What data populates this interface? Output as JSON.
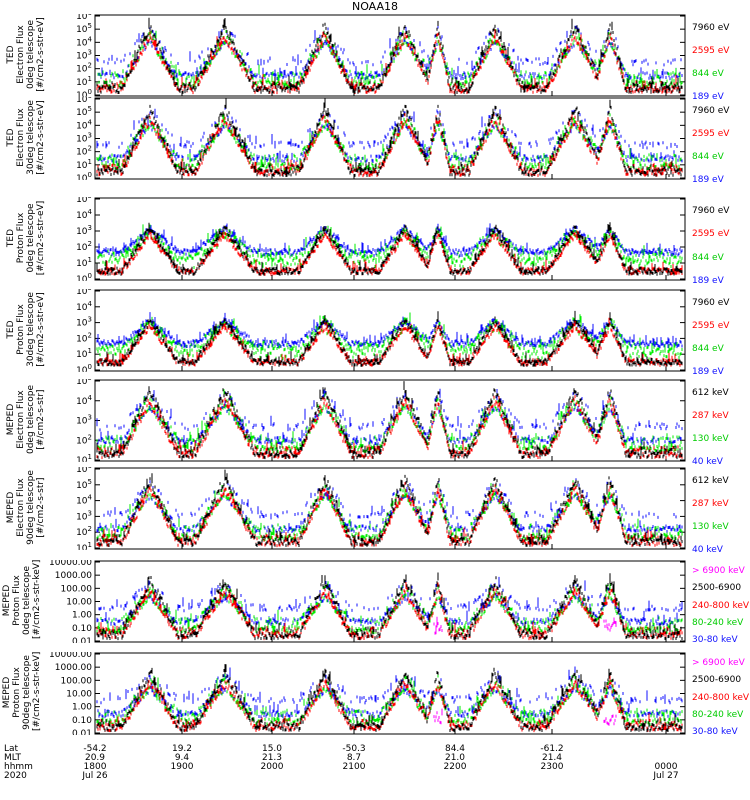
{
  "title": "NOAA18",
  "colors": {
    "blue": "#1010ff",
    "red": "#ff0000",
    "green": "#00ee00",
    "black": "#000000",
    "magenta": "#ff00ff"
  },
  "chart_data": [
    {
      "type": "line",
      "panel": 1,
      "ylabel": [
        "TED",
        "Electron Flux",
        "0deg telescope",
        "[#/cm2-s-str-eV]"
      ],
      "yscale": "log",
      "ylim": [
        1,
        1000000
      ],
      "yticks": [
        "10^0",
        "10^1",
        "10^2",
        "10^3",
        "10^4",
        "10^5",
        "10^6"
      ],
      "series": [
        {
          "name": "7960 eV",
          "color": "#000000"
        },
        {
          "name": "2595 eV",
          "color": "#ff0000"
        },
        {
          "name": "844 eV",
          "color": "#00ee00"
        },
        {
          "name": "189 eV",
          "color": "#1010ff"
        }
      ]
    },
    {
      "type": "line",
      "panel": 2,
      "ylabel": [
        "TED",
        "Electron Flux",
        "30deg telescope",
        "[#/cm2-s-str-eV]"
      ],
      "yscale": "log",
      "ylim": [
        1,
        1000000
      ],
      "yticks": [
        "10^0",
        "10^1",
        "10^2",
        "10^3",
        "10^4",
        "10^5",
        "10^6"
      ],
      "series": [
        {
          "name": "7960 eV",
          "color": "#000000"
        },
        {
          "name": "2595 eV",
          "color": "#ff0000"
        },
        {
          "name": "844 eV",
          "color": "#00ee00"
        },
        {
          "name": "189 eV",
          "color": "#1010ff"
        }
      ]
    },
    {
      "type": "line",
      "panel": 3,
      "ylabel": [
        "TED",
        "Proton Flux",
        "0deg telescope",
        "[#/cm2-s-str-eV]"
      ],
      "yscale": "log",
      "ylim": [
        1,
        100000
      ],
      "yticks": [
        "10^0",
        "10^1",
        "10^2",
        "10^3",
        "10^4",
        "10^5"
      ],
      "series": [
        {
          "name": "7960 eV",
          "color": "#000000"
        },
        {
          "name": "2595 eV",
          "color": "#ff0000"
        },
        {
          "name": "844 eV",
          "color": "#00ee00"
        },
        {
          "name": "189 eV",
          "color": "#1010ff"
        }
      ]
    },
    {
      "type": "line",
      "panel": 4,
      "ylabel": [
        "TED",
        "Proton Flux",
        "30deg telescope",
        "[#/cm2-s-str-eV]"
      ],
      "yscale": "log",
      "ylim": [
        1,
        100000
      ],
      "yticks": [
        "10^0",
        "10^1",
        "10^2",
        "10^3",
        "10^4",
        "10^5"
      ],
      "series": [
        {
          "name": "7960 eV",
          "color": "#000000"
        },
        {
          "name": "2595 eV",
          "color": "#ff0000"
        },
        {
          "name": "844 eV",
          "color": "#00ee00"
        },
        {
          "name": "189 eV",
          "color": "#1010ff"
        }
      ]
    },
    {
      "type": "line",
      "panel": 5,
      "ylabel": [
        "MEPED",
        "Electron Flux",
        "0deg telescope",
        "[#/cm2-s-str]"
      ],
      "yscale": "log",
      "ylim": [
        10,
        100000
      ],
      "yticks": [
        "10^1",
        "10^2",
        "10^3",
        "10^4",
        "10^5"
      ],
      "series": [
        {
          "name": "612 keV",
          "color": "#000000"
        },
        {
          "name": "287 keV",
          "color": "#ff0000"
        },
        {
          "name": "130 keV",
          "color": "#00ee00"
        },
        {
          "name": "40 keV",
          "color": "#1010ff"
        }
      ]
    },
    {
      "type": "line",
      "panel": 6,
      "ylabel": [
        "MEPED",
        "Electron Flux",
        "90deg telescope",
        "[#/cm2-s-str]"
      ],
      "yscale": "log",
      "ylim": [
        10,
        1000000
      ],
      "yticks": [
        "10^1",
        "10^2",
        "10^3",
        "10^4",
        "10^5",
        "10^6"
      ],
      "series": [
        {
          "name": "612 keV",
          "color": "#000000"
        },
        {
          "name": "287 keV",
          "color": "#ff0000"
        },
        {
          "name": "130 keV",
          "color": "#00ee00"
        },
        {
          "name": "40 keV",
          "color": "#1010ff"
        }
      ]
    },
    {
      "type": "line",
      "panel": 7,
      "ylabel": [
        "MEPED",
        "Proton Flux",
        "0deg telescope",
        "[#/cm2-s-str-keV]"
      ],
      "yscale": "log",
      "ylim": [
        0.01,
        10000
      ],
      "yticks": [
        "0.01",
        "0.10",
        "1.00",
        "10.00",
        "100.00",
        "1000.00",
        "10000.00"
      ],
      "series": [
        {
          "name": "> 6900 keV",
          "color": "#ff00ff"
        },
        {
          "name": "2500-6900",
          "color": "#000000"
        },
        {
          "name": "240-800 keV",
          "color": "#ff0000"
        },
        {
          "name": "80-240 keV",
          "color": "#00ee00"
        },
        {
          "name": "30-80 keV",
          "color": "#1010ff"
        }
      ]
    },
    {
      "type": "line",
      "panel": 8,
      "ylabel": [
        "MEPED",
        "Proton Flux",
        "90deg telescope",
        "[#/cm2-s-str-keV]"
      ],
      "yscale": "log",
      "ylim": [
        0.01,
        10000
      ],
      "yticks": [
        "0.01",
        "0.10",
        "1.00",
        "10.00",
        "100.00",
        "1000.00",
        "10000.00"
      ],
      "series": [
        {
          "name": "> 6900 keV",
          "color": "#ff00ff"
        },
        {
          "name": "2500-6900",
          "color": "#000000"
        },
        {
          "name": "240-800 keV",
          "color": "#ff0000"
        },
        {
          "name": "80-240 keV",
          "color": "#00ee00"
        },
        {
          "name": "30-80 keV",
          "color": "#1010ff"
        }
      ]
    }
  ],
  "xaxis": {
    "row_labels": [
      "Lat",
      "MLT",
      "hhmm",
      "2020"
    ],
    "columns": [
      {
        "lat": "-54.2",
        "mlt": "20.9",
        "hhmm": "1800",
        "date": "Jul 26"
      },
      {
        "lat": "19.2",
        "mlt": "9.4",
        "hhmm": "1900",
        "date": ""
      },
      {
        "lat": "15.0",
        "mlt": "21.3",
        "hhmm": "2000",
        "date": ""
      },
      {
        "lat": "-50.3",
        "mlt": "8.7",
        "hhmm": "2100",
        "date": ""
      },
      {
        "lat": "84.4",
        "mlt": "21.0",
        "hhmm": "2200",
        "date": ""
      },
      {
        "lat": "-61.2",
        "mlt": "21.4",
        "hhmm": "2300",
        "date": ""
      },
      {
        "lat": "",
        "mlt": "",
        "hhmm": "0000",
        "date": "Jul 27"
      }
    ]
  }
}
